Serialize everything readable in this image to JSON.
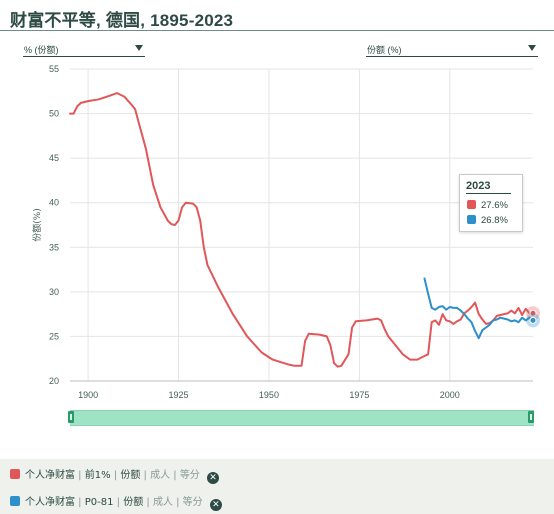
{
  "title": "财富不平等, 德国, 1895-2023",
  "selectors": {
    "left": "% (份额)",
    "right": "份额 (%)"
  },
  "tooltip": {
    "year": "2023",
    "rows": [
      {
        "color": "#e15759",
        "value": "27.6%"
      },
      {
        "color": "#2e8fc9",
        "value": "26.8%"
      }
    ]
  },
  "legend": [
    {
      "color": "#e15759",
      "parts": [
        "个人净财富",
        "前1%",
        "份额"
      ],
      "muted": [
        "成人",
        "等分"
      ]
    },
    {
      "color": "#2e8fc9",
      "parts": [
        "个人净财富",
        "P0-81",
        "份额"
      ],
      "muted": [
        "成人",
        "等分"
      ]
    }
  ],
  "chart_data": {
    "type": "line",
    "ylabel": "份额(%)",
    "xlim": [
      1895,
      2023
    ],
    "ylim": [
      20,
      55
    ],
    "x_ticks": [
      1900,
      1925,
      1950,
      1975,
      2000
    ],
    "y_ticks": [
      20,
      25,
      30,
      35,
      40,
      45,
      50,
      55
    ],
    "grid": true,
    "series": [
      {
        "color": "#e15759",
        "points": [
          [
            1895,
            50
          ],
          [
            1896,
            50
          ],
          [
            1897,
            50.8
          ],
          [
            1898,
            51.2
          ],
          [
            1900,
            51.4
          ],
          [
            1903,
            51.6
          ],
          [
            1906,
            52
          ],
          [
            1908,
            52.3
          ],
          [
            1910,
            51.9
          ],
          [
            1912,
            51
          ],
          [
            1913,
            50.5
          ],
          [
            1914,
            49
          ],
          [
            1916,
            46
          ],
          [
            1918,
            42
          ],
          [
            1920,
            39.5
          ],
          [
            1922,
            38
          ],
          [
            1923,
            37.6
          ],
          [
            1924,
            37.5
          ],
          [
            1925,
            38
          ],
          [
            1926,
            39.5
          ],
          [
            1927,
            40
          ],
          [
            1929,
            39.9
          ],
          [
            1930,
            39.5
          ],
          [
            1931,
            38
          ],
          [
            1932,
            35
          ],
          [
            1933,
            33
          ],
          [
            1936,
            30.5
          ],
          [
            1940,
            27.5
          ],
          [
            1944,
            25
          ],
          [
            1948,
            23.2
          ],
          [
            1951,
            22.4
          ],
          [
            1955,
            21.9
          ],
          [
            1957,
            21.7
          ],
          [
            1959,
            21.7
          ],
          [
            1960,
            24.5
          ],
          [
            1961,
            25.3
          ],
          [
            1964,
            25.2
          ],
          [
            1966,
            25
          ],
          [
            1967,
            24
          ],
          [
            1968,
            22
          ],
          [
            1969,
            21.6
          ],
          [
            1970,
            21.7
          ],
          [
            1972,
            23
          ],
          [
            1973,
            26
          ],
          [
            1974,
            26.7
          ],
          [
            1977,
            26.8
          ],
          [
            1980,
            27
          ],
          [
            1981,
            26.8
          ],
          [
            1982,
            25.8
          ],
          [
            1983,
            25
          ],
          [
            1985,
            24
          ],
          [
            1987,
            23
          ],
          [
            1989,
            22.4
          ],
          [
            1991,
            22.4
          ],
          [
            1993,
            22.8
          ],
          [
            1994,
            23
          ],
          [
            1995,
            26.6
          ],
          [
            1996,
            26.8
          ],
          [
            1997,
            26.3
          ],
          [
            1998,
            27.5
          ],
          [
            1999,
            26.8
          ],
          [
            2000,
            26.7
          ],
          [
            2001,
            26.4
          ],
          [
            2002,
            26.7
          ],
          [
            2003,
            26.9
          ],
          [
            2004,
            27.6
          ],
          [
            2005,
            27.9
          ],
          [
            2006,
            28.3
          ],
          [
            2007,
            28.8
          ],
          [
            2008,
            27.5
          ],
          [
            2009,
            26.9
          ],
          [
            2010,
            26.4
          ],
          [
            2011,
            26.5
          ],
          [
            2012,
            26.8
          ],
          [
            2013,
            27.3
          ],
          [
            2014,
            27.4
          ],
          [
            2015,
            27.5
          ],
          [
            2016,
            27.6
          ],
          [
            2017,
            27.9
          ],
          [
            2018,
            27.6
          ],
          [
            2019,
            28.2
          ],
          [
            2020,
            27.4
          ],
          [
            2021,
            28.1
          ],
          [
            2022,
            27.6
          ],
          [
            2023,
            27.6
          ]
        ]
      },
      {
        "color": "#2e8fc9",
        "points": [
          [
            1993,
            31.5
          ],
          [
            1994,
            29.8
          ],
          [
            1995,
            28.2
          ],
          [
            1996,
            28
          ],
          [
            1997,
            28.3
          ],
          [
            1998,
            28.4
          ],
          [
            1999,
            28
          ],
          [
            2000,
            28.3
          ],
          [
            2001,
            28.2
          ],
          [
            2002,
            28.2
          ],
          [
            2003,
            27.9
          ],
          [
            2004,
            27.5
          ],
          [
            2005,
            27
          ],
          [
            2006,
            26.6
          ],
          [
            2007,
            25.6
          ],
          [
            2008,
            24.8
          ],
          [
            2009,
            25.7
          ],
          [
            2010,
            26
          ],
          [
            2011,
            26.3
          ],
          [
            2012,
            26.8
          ],
          [
            2013,
            26.9
          ],
          [
            2014,
            27.1
          ],
          [
            2015,
            27
          ],
          [
            2016,
            26.9
          ],
          [
            2017,
            26.7
          ],
          [
            2018,
            26.8
          ],
          [
            2019,
            26.6
          ],
          [
            2020,
            27.1
          ],
          [
            2021,
            26.8
          ],
          [
            2022,
            27.1
          ],
          [
            2023,
            26.8
          ]
        ]
      }
    ]
  }
}
